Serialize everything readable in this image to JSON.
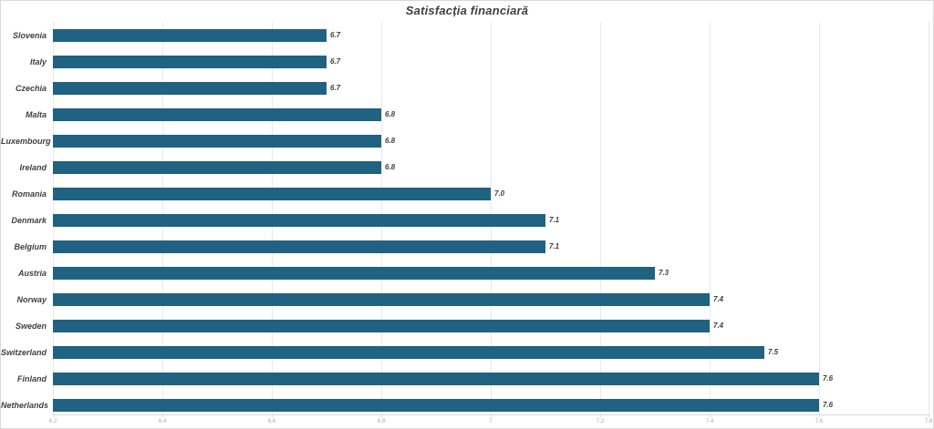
{
  "chart_data": {
    "type": "bar",
    "orientation": "horizontal",
    "title": "Satisfacția financiară",
    "xlabel": "",
    "ylabel": "",
    "categories": [
      "Slovenia",
      "Italy",
      "Czechia",
      "Malta",
      "Luxembourg",
      "Ireland",
      "Romania",
      "Denmark",
      "Belgium",
      "Austria",
      "Norway",
      "Sweden",
      "Switzerland",
      "Finland",
      "Netherlands"
    ],
    "values": [
      6.7,
      6.7,
      6.7,
      6.8,
      6.8,
      6.8,
      7.0,
      7.1,
      7.1,
      7.3,
      7.4,
      7.4,
      7.5,
      7.6,
      7.6
    ],
    "value_labels": [
      "6.7",
      "6.7",
      "6.7",
      "6.8",
      "6.8",
      "6.8",
      "7.0",
      "7.1",
      "7.1",
      "7.3",
      "7.4",
      "7.4",
      "7.5",
      "7.6",
      "7.6"
    ],
    "xlim": [
      6.2,
      7.8
    ],
    "x_ticks": [
      {
        "value": 6.2,
        "label": "6.2"
      },
      {
        "value": 6.4,
        "label": "6.4"
      },
      {
        "value": 6.6,
        "label": "6.6"
      },
      {
        "value": 6.8,
        "label": "6.8"
      },
      {
        "value": 7.0,
        "label": "7"
      },
      {
        "value": 7.2,
        "label": "7.2"
      },
      {
        "value": 7.4,
        "label": "7.4"
      },
      {
        "value": 7.6,
        "label": "7.6"
      },
      {
        "value": 7.8,
        "label": "7.8"
      }
    ],
    "grid": "vertical-on",
    "legend": "none",
    "colors": {
      "bar": "#1f6282",
      "title_text": "#3f3f3f",
      "category_text": "#3f3f3f",
      "value_text": "#3f3f3f",
      "gridline": "#e9e9e9",
      "axis_line": "#d9d9d9",
      "tick_text": "#a8a8a8",
      "background": "#ffffff",
      "border": "#d9d9d9"
    }
  }
}
